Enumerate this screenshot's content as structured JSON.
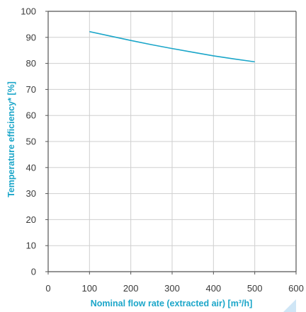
{
  "chart_data": {
    "type": "line",
    "title": "",
    "xlabel": "Nominal flow rate (extracted air) [m³/h]",
    "ylabel": "Temperature efficiency* [%]",
    "xlim": [
      0,
      600
    ],
    "ylim": [
      0,
      100
    ],
    "x_ticks": [
      0,
      100,
      200,
      300,
      400,
      500,
      600
    ],
    "y_ticks": [
      0,
      10,
      20,
      30,
      40,
      50,
      60,
      70,
      80,
      90,
      100
    ],
    "grid": true,
    "legend": "none",
    "series": [
      {
        "x": [
          100,
          150,
          200,
          250,
          300,
          350,
          400,
          450,
          500
        ],
        "y": [
          92.2,
          90.5,
          88.8,
          87.2,
          85.7,
          84.3,
          82.9,
          81.7,
          80.6
        ]
      }
    ]
  },
  "colors": {
    "line": "#1ba6c9",
    "axis_title": "#1ba6c9",
    "grid": "#cfcfcf",
    "axis": "#555555",
    "corner_mark": "#cfe6f6"
  }
}
